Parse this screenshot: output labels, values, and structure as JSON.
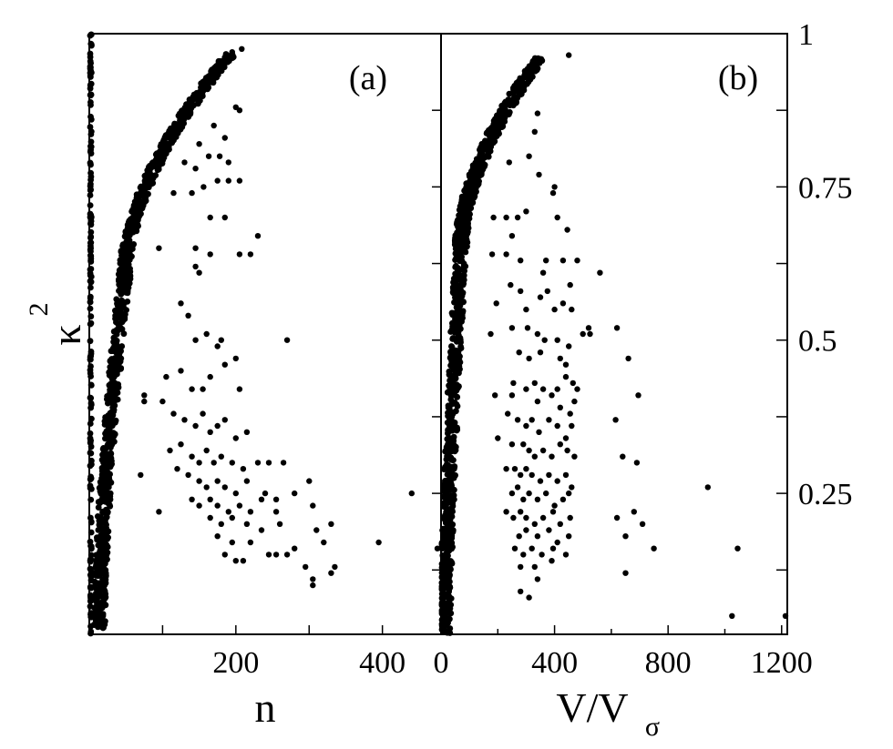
{
  "chart_data": [
    {
      "type": "scatter",
      "panel_label": "(a)",
      "xlabel": "n",
      "ylabel": "κ",
      "ylabel_superscript": "2",
      "xlim": [
        0,
        480
      ],
      "ylim": [
        0.02,
        1.0
      ],
      "xticks": [
        0,
        100,
        200,
        300,
        400
      ],
      "xticklabels": [
        "",
        "",
        "200",
        "",
        "400"
      ],
      "yticks": [
        0.125,
        0.25,
        0.375,
        0.5,
        0.625,
        0.75,
        0.875,
        1.0
      ],
      "bands": [
        {
          "y0": 0.02,
          "y1": 1.0,
          "x_at_y0": 2,
          "x_at_y1": 2,
          "curve": 1.0,
          "width": 2,
          "count": 170
        },
        {
          "y0": 0.03,
          "y1": 0.6,
          "x_at_y0": 14,
          "x_at_y1": 48,
          "curve": 1.6,
          "width": 16,
          "count": 520
        },
        {
          "y0": 0.6,
          "y1": 0.97,
          "x_at_y0": 48,
          "x_at_y1": 195,
          "curve": 1.8,
          "width": 16,
          "count": 520
        }
      ],
      "points": [
        [
          195,
          0.97
        ],
        [
          208,
          0.975
        ],
        [
          170,
          0.85
        ],
        [
          185,
          0.83
        ],
        [
          200,
          0.88
        ],
        [
          205,
          0.875
        ],
        [
          150,
          0.82
        ],
        [
          163,
          0.8
        ],
        [
          178,
          0.8
        ],
        [
          190,
          0.79
        ],
        [
          130,
          0.79
        ],
        [
          145,
          0.78
        ],
        [
          156,
          0.75
        ],
        [
          175,
          0.76
        ],
        [
          190,
          0.76
        ],
        [
          205,
          0.76
        ],
        [
          115,
          0.74
        ],
        [
          140,
          0.74
        ],
        [
          165,
          0.7
        ],
        [
          185,
          0.7
        ],
        [
          230,
          0.67
        ],
        [
          95,
          0.65
        ],
        [
          145,
          0.65
        ],
        [
          165,
          0.64
        ],
        [
          205,
          0.64
        ],
        [
          220,
          0.64
        ],
        [
          145,
          0.62
        ],
        [
          150,
          0.61
        ],
        [
          125,
          0.56
        ],
        [
          135,
          0.54
        ],
        [
          145,
          0.5
        ],
        [
          160,
          0.51
        ],
        [
          175,
          0.49
        ],
        [
          180,
          0.5
        ],
        [
          270,
          0.5
        ],
        [
          105,
          0.44
        ],
        [
          125,
          0.45
        ],
        [
          140,
          0.42
        ],
        [
          155,
          0.42
        ],
        [
          165,
          0.44
        ],
        [
          185,
          0.46
        ],
        [
          200,
          0.47
        ],
        [
          205,
          0.42
        ],
        [
          75,
          0.41
        ],
        [
          75,
          0.4
        ],
        [
          100,
          0.4
        ],
        [
          115,
          0.38
        ],
        [
          130,
          0.37
        ],
        [
          145,
          0.36
        ],
        [
          155,
          0.38
        ],
        [
          165,
          0.35
        ],
        [
          175,
          0.36
        ],
        [
          185,
          0.37
        ],
        [
          200,
          0.34
        ],
        [
          215,
          0.35
        ],
        [
          110,
          0.32
        ],
        [
          125,
          0.33
        ],
        [
          140,
          0.31
        ],
        [
          150,
          0.3
        ],
        [
          160,
          0.32
        ],
        [
          170,
          0.3
        ],
        [
          180,
          0.31
        ],
        [
          195,
          0.3
        ],
        [
          210,
          0.29
        ],
        [
          230,
          0.3
        ],
        [
          245,
          0.3
        ],
        [
          265,
          0.3
        ],
        [
          120,
          0.29
        ],
        [
          135,
          0.28
        ],
        [
          150,
          0.27
        ],
        [
          160,
          0.26
        ],
        [
          175,
          0.27
        ],
        [
          185,
          0.26
        ],
        [
          200,
          0.25
        ],
        [
          215,
          0.27
        ],
        [
          240,
          0.25
        ],
        [
          255,
          0.24
        ],
        [
          300,
          0.27
        ],
        [
          70,
          0.28
        ],
        [
          140,
          0.24
        ],
        [
          150,
          0.23
        ],
        [
          165,
          0.24
        ],
        [
          175,
          0.23
        ],
        [
          190,
          0.22
        ],
        [
          205,
          0.23
        ],
        [
          220,
          0.22
        ],
        [
          235,
          0.24
        ],
        [
          255,
          0.22
        ],
        [
          280,
          0.25
        ],
        [
          95,
          0.22
        ],
        [
          165,
          0.21
        ],
        [
          180,
          0.2
        ],
        [
          195,
          0.21
        ],
        [
          215,
          0.2
        ],
        [
          235,
          0.19
        ],
        [
          260,
          0.2
        ],
        [
          305,
          0.23
        ],
        [
          310,
          0.19
        ],
        [
          330,
          0.2
        ],
        [
          175,
          0.18
        ],
        [
          195,
          0.17
        ],
        [
          220,
          0.17
        ],
        [
          245,
          0.15
        ],
        [
          255,
          0.15
        ],
        [
          270,
          0.15
        ],
        [
          280,
          0.16
        ],
        [
          185,
          0.15
        ],
        [
          200,
          0.14
        ],
        [
          210,
          0.14
        ],
        [
          320,
          0.17
        ],
        [
          395,
          0.17
        ],
        [
          440,
          0.25
        ],
        [
          475,
          0.16
        ],
        [
          295,
          0.13
        ],
        [
          305,
          0.11
        ],
        [
          330,
          0.12
        ],
        [
          335,
          0.13
        ],
        [
          305,
          0.1
        ]
      ]
    },
    {
      "type": "scatter",
      "panel_label": "(b)",
      "xlabel": "V/V",
      "xlabel_subscript": "σ",
      "ylabel": "",
      "xlim": [
        0,
        1220
      ],
      "ylim": [
        0.02,
        1.0
      ],
      "xticks": [
        0,
        400,
        800,
        1200
      ],
      "xticklabels": [
        "0",
        "400",
        "800",
        "1200"
      ],
      "minor_xticks": [
        200,
        600,
        1000
      ],
      "yticks": [
        0.125,
        0.25,
        0.375,
        0.5,
        0.625,
        0.75,
        0.875,
        1.0
      ],
      "yticklabels": [
        "",
        "0.25",
        "",
        "0.5",
        "",
        "0.75",
        "",
        "1"
      ],
      "bands": [
        {
          "y0": 0.02,
          "y1": 0.65,
          "x_at_y0": 14,
          "x_at_y1": 70,
          "curve": 1.4,
          "width": 40,
          "count": 560
        },
        {
          "y0": 0.65,
          "y1": 0.96,
          "x_at_y0": 70,
          "x_at_y1": 350,
          "curve": 1.8,
          "width": 45,
          "count": 480
        }
      ],
      "points": [
        [
          450,
          0.965
        ],
        [
          340,
          0.87
        ],
        [
          330,
          0.84
        ],
        [
          310,
          0.8
        ],
        [
          240,
          0.79
        ],
        [
          345,
          0.77
        ],
        [
          400,
          0.75
        ],
        [
          395,
          0.74
        ],
        [
          185,
          0.7
        ],
        [
          230,
          0.7
        ],
        [
          270,
          0.7
        ],
        [
          300,
          0.71
        ],
        [
          410,
          0.7
        ],
        [
          250,
          0.67
        ],
        [
          445,
          0.68
        ],
        [
          180,
          0.64
        ],
        [
          230,
          0.64
        ],
        [
          280,
          0.63
        ],
        [
          370,
          0.63
        ],
        [
          430,
          0.63
        ],
        [
          480,
          0.63
        ],
        [
          360,
          0.61
        ],
        [
          560,
          0.61
        ],
        [
          245,
          0.59
        ],
        [
          280,
          0.58
        ],
        [
          375,
          0.58
        ],
        [
          455,
          0.59
        ],
        [
          195,
          0.56
        ],
        [
          300,
          0.55
        ],
        [
          350,
          0.57
        ],
        [
          400,
          0.55
        ],
        [
          430,
          0.56
        ],
        [
          460,
          0.55
        ],
        [
          175,
          0.51
        ],
        [
          250,
          0.52
        ],
        [
          305,
          0.52
        ],
        [
          340,
          0.51
        ],
        [
          365,
          0.5
        ],
        [
          410,
          0.5
        ],
        [
          450,
          0.49
        ],
        [
          500,
          0.51
        ],
        [
          520,
          0.52
        ],
        [
          620,
          0.52
        ],
        [
          275,
          0.48
        ],
        [
          310,
          0.47
        ],
        [
          350,
          0.48
        ],
        [
          420,
          0.47
        ],
        [
          440,
          0.46
        ],
        [
          525,
          0.51
        ],
        [
          660,
          0.47
        ],
        [
          255,
          0.43
        ],
        [
          300,
          0.42
        ],
        [
          330,
          0.43
        ],
        [
          360,
          0.42
        ],
        [
          410,
          0.42
        ],
        [
          440,
          0.44
        ],
        [
          465,
          0.43
        ],
        [
          480,
          0.42
        ],
        [
          190,
          0.41
        ],
        [
          250,
          0.41
        ],
        [
          340,
          0.4
        ],
        [
          390,
          0.41
        ],
        [
          420,
          0.39
        ],
        [
          455,
          0.38
        ],
        [
          470,
          0.4
        ],
        [
          695,
          0.41
        ],
        [
          235,
          0.38
        ],
        [
          270,
          0.37
        ],
        [
          300,
          0.36
        ],
        [
          320,
          0.37
        ],
        [
          345,
          0.35
        ],
        [
          380,
          0.37
        ],
        [
          410,
          0.36
        ],
        [
          440,
          0.34
        ],
        [
          460,
          0.36
        ],
        [
          615,
          0.37
        ],
        [
          200,
          0.34
        ],
        [
          250,
          0.33
        ],
        [
          290,
          0.33
        ],
        [
          310,
          0.32
        ],
        [
          330,
          0.31
        ],
        [
          360,
          0.32
        ],
        [
          390,
          0.31
        ],
        [
          420,
          0.33
        ],
        [
          445,
          0.32
        ],
        [
          470,
          0.31
        ],
        [
          640,
          0.31
        ],
        [
          690,
          0.3
        ],
        [
          230,
          0.29
        ],
        [
          260,
          0.29
        ],
        [
          280,
          0.28
        ],
        [
          300,
          0.29
        ],
        [
          320,
          0.28
        ],
        [
          350,
          0.27
        ],
        [
          380,
          0.28
        ],
        [
          410,
          0.27
        ],
        [
          440,
          0.28
        ],
        [
          460,
          0.26
        ],
        [
          250,
          0.25
        ],
        [
          270,
          0.26
        ],
        [
          290,
          0.24
        ],
        [
          310,
          0.25
        ],
        [
          340,
          0.24
        ],
        [
          370,
          0.25
        ],
        [
          400,
          0.23
        ],
        [
          430,
          0.24
        ],
        [
          450,
          0.25
        ],
        [
          940,
          0.26
        ],
        [
          230,
          0.22
        ],
        [
          255,
          0.21
        ],
        [
          280,
          0.22
        ],
        [
          300,
          0.21
        ],
        [
          330,
          0.2
        ],
        [
          360,
          0.21
        ],
        [
          395,
          0.22
        ],
        [
          420,
          0.2
        ],
        [
          455,
          0.21
        ],
        [
          620,
          0.21
        ],
        [
          680,
          0.22
        ],
        [
          275,
          0.18
        ],
        [
          300,
          0.19
        ],
        [
          340,
          0.18
        ],
        [
          380,
          0.19
        ],
        [
          410,
          0.17
        ],
        [
          450,
          0.18
        ],
        [
          650,
          0.18
        ],
        [
          710,
          0.2
        ],
        [
          260,
          0.16
        ],
        [
          290,
          0.15
        ],
        [
          320,
          0.16
        ],
        [
          355,
          0.15
        ],
        [
          395,
          0.16
        ],
        [
          440,
          0.15
        ],
        [
          750,
          0.16
        ],
        [
          1045,
          0.16
        ],
        [
          280,
          0.13
        ],
        [
          330,
          0.13
        ],
        [
          390,
          0.14
        ],
        [
          650,
          0.12
        ],
        [
          340,
          0.11
        ],
        [
          280,
          0.09
        ],
        [
          310,
          0.08
        ],
        [
          1025,
          0.05
        ],
        [
          1215,
          0.05
        ]
      ]
    }
  ]
}
